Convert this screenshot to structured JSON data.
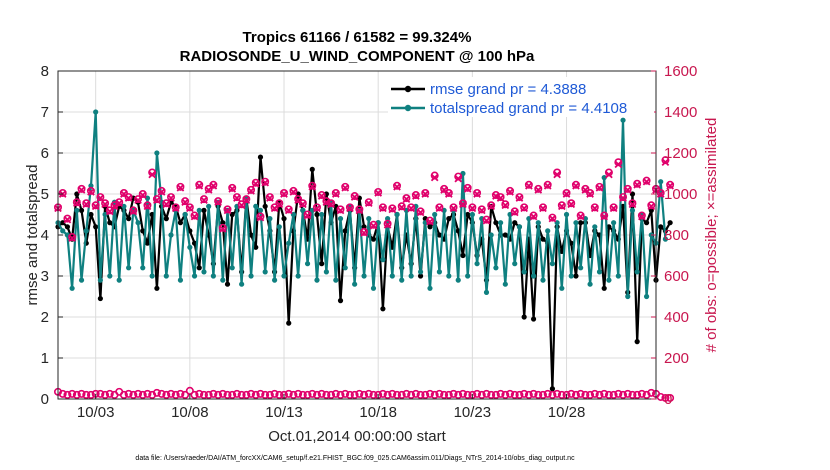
{
  "chart_data": {
    "type": "line",
    "title_line1": "Tropics 61166 / 61582 = 99.324%",
    "title_line2": "RADIOSONDE_U_WIND_COMPONENT @ 100 hPa",
    "xlabel": "Oct.01,2014 00:00:00 start",
    "ylabel_left": "rmse and totalspread",
    "ylabel_right": "# of obs: o=possible; ×=assimilated",
    "footer": "data file: /Users/raeder/DAI/ATM_forcXX/CAM6_setup/f.e21.FHIST_BGC.f09_025.CAM6assim.011/Diags_NTrS_2014-10/obs_diag_output.nc",
    "xlim": [
      1.0,
      32.75
    ],
    "ylim_left": [
      0,
      8
    ],
    "ylim_right": [
      0,
      1600
    ],
    "yticks_left": [
      "0",
      "1",
      "2",
      "3",
      "4",
      "5",
      "6",
      "7",
      "8"
    ],
    "yticks_right": [
      "0",
      "200",
      "400",
      "600",
      "800",
      "1000",
      "1200",
      "1400",
      "1600"
    ],
    "xticks": [
      {
        "day": 3,
        "label": "10/03"
      },
      {
        "day": 8,
        "label": "10/08"
      },
      {
        "day": 13,
        "label": "10/13"
      },
      {
        "day": 18,
        "label": "10/18"
      },
      {
        "day": 23,
        "label": "10/23"
      },
      {
        "day": 28,
        "label": "10/28"
      }
    ],
    "x_start_day": 1.0,
    "x_step_days": 0.25,
    "series": [
      {
        "name": "rmse grand pr = 4.3888",
        "color": "#000000",
        "axis": "left",
        "values": [
          4.2,
          4.3,
          4.2,
          3.9,
          5.0,
          4.6,
          3.8,
          4.5,
          4.2,
          2.45,
          4.7,
          4.3,
          4.2,
          4.7,
          4.6,
          4.4,
          4.9,
          4.8,
          4.1,
          3.8,
          4.5,
          2.7,
          4.7,
          4.4,
          4.8,
          4.7,
          4.3,
          4.5,
          4.1,
          3.8,
          3.2,
          4.6,
          4.0,
          3.3,
          4.7,
          4.3,
          2.8,
          4.5,
          4.6,
          3.1,
          4.9,
          4.0,
          3.7,
          5.9,
          4.7,
          4.1,
          3.1,
          4.8,
          4.4,
          1.85,
          4.1,
          5.0,
          4.6,
          3.9,
          5.6,
          4.5,
          3.3,
          5.0,
          4.3,
          4.7,
          2.4,
          4.1,
          4.6,
          3.2,
          4.9,
          4.2,
          4.0,
          3.9,
          4.3,
          2.2,
          4.2,
          3.7,
          4.5,
          3.2,
          4.0,
          3.3,
          4.4,
          3.0,
          4.4,
          4.2,
          4.3,
          4.0,
          3.9,
          4.4,
          4.5,
          4.1,
          3.5,
          4.5,
          4.3,
          3.5,
          3.9,
          2.9,
          4.7,
          4.3,
          4.0,
          4.0,
          3.9,
          4.3,
          4.2,
          2.0,
          3.9,
          1.95,
          4.2,
          3.9,
          3.8,
          0.25,
          4.2,
          3.6,
          4.1,
          3.8,
          3.0,
          4.3,
          4.3,
          3.5,
          4.1,
          4.0,
          2.7,
          4.2,
          4.1,
          3.9,
          4.7,
          2.6,
          5.0,
          1.4,
          4.4,
          4.3,
          4.6,
          2.9,
          4.2,
          4.1,
          4.3
        ]
      },
      {
        "name": "totalspread grand pr = 4.4108",
        "color": "#0f8080",
        "axis": "left",
        "values": [
          4.3,
          4.1,
          4.0,
          2.7,
          4.6,
          2.9,
          4.1,
          5.2,
          7.0,
          2.9,
          4.5,
          3.0,
          4.8,
          2.9,
          4.7,
          3.2,
          4.6,
          4.3,
          3.2,
          4.9,
          3.0,
          6.0,
          4.8,
          3.0,
          4.0,
          4.6,
          2.9,
          4.5,
          3.7,
          3.0,
          4.6,
          3.1,
          4.7,
          3.0,
          4.8,
          2.9,
          4.6,
          3.2,
          4.7,
          2.8,
          4.9,
          3.0,
          4.7,
          4.6,
          3.1,
          4.4,
          2.9,
          4.2,
          3.0,
          3.8,
          4.5,
          3.0,
          4.6,
          3.3,
          4.6,
          2.9,
          4.5,
          3.1,
          4.8,
          2.9,
          4.4,
          3.2,
          4.7,
          2.8,
          4.6,
          3.0,
          4.4,
          2.7,
          4.3,
          3.4,
          4.4,
          3.0,
          4.5,
          2.9,
          4.6,
          3.0,
          4.7,
          3.1,
          4.3,
          2.7,
          4.5,
          3.1,
          4.6,
          3.0,
          4.6,
          2.9,
          5.5,
          3.0,
          4.5,
          3.3,
          4.4,
          2.6,
          4.0,
          3.2,
          4.3,
          2.8,
          4.5,
          3.3,
          4.2,
          3.1,
          4.4,
          3.0,
          4.3,
          2.9,
          4.1,
          3.3,
          4.3,
          2.7,
          4.5,
          3.0,
          4.3,
          3.2,
          4.4,
          2.8,
          4.2,
          3.1,
          5.4,
          2.9,
          4.3,
          3.0,
          6.8,
          2.5,
          4.6,
          3.1,
          4.5,
          2.5,
          4.0,
          3.8,
          5.3,
          3.9
        ]
      },
      {
        "name": "possible",
        "color": "#e0006b",
        "axis": "right",
        "marker": "circle",
        "values": [
          935,
          1005,
          880,
          790,
          960,
          1025,
          955,
          1015,
          945,
          985,
          955,
          920,
          945,
          960,
          1005,
          985,
          920,
          975,
          1000,
          945,
          1105,
          975,
          1015,
          955,
          985,
          935,
          1035,
          965,
          935,
          895,
          1045,
          975,
          1025,
          1045,
          965,
          835,
          925,
          1030,
          985,
          950,
          975,
          1020,
          1055,
          890,
          1060,
          985,
          935,
          955,
          1005,
          925,
          1015,
          975,
          955,
          900,
          1040,
          935,
          995,
          965,
          955,
          1005,
          925,
          1035,
          935,
          990,
          925,
          815,
          960,
          850,
          1010,
          935,
          855,
          930,
          1040,
          940,
          980,
          935,
          995,
          915,
          1005,
          870,
          1090,
          935,
          1025,
          1005,
          935,
          1085,
          955,
          1030,
          935,
          1005,
          925,
          875,
          945,
          995,
          985,
          950,
          1015,
          915,
          985,
          935,
          1045,
          895,
          1025,
          935,
          1045,
          885,
          1105,
          945,
          1005,
          955,
          1045,
          895,
          1025,
          1005,
          935,
          1035,
          895,
          1105,
          935,
          1155,
          985,
          1025,
          955,
          1050,
          895,
          1065,
          945,
          1025,
          1005,
          1165,
          1045
        ]
      },
      {
        "name": "assimilated",
        "color": "#e0006b",
        "axis": "right",
        "marker": "x",
        "values": [
          930,
          1000,
          875,
          785,
          955,
          1020,
          950,
          1010,
          940,
          980,
          950,
          915,
          940,
          955,
          1000,
          980,
          915,
          970,
          995,
          940,
          1095,
          970,
          1010,
          950,
          980,
          930,
          1030,
          960,
          930,
          890,
          1040,
          970,
          1020,
          1040,
          960,
          830,
          920,
          1025,
          980,
          945,
          970,
          1015,
          1050,
          885,
          1055,
          980,
          930,
          950,
          1000,
          920,
          1010,
          970,
          950,
          895,
          1035,
          930,
          990,
          960,
          950,
          1000,
          920,
          1030,
          930,
          985,
          920,
          810,
          955,
          845,
          1005,
          930,
          850,
          925,
          1035,
          935,
          975,
          930,
          990,
          910,
          1000,
          865,
          1080,
          930,
          1020,
          1000,
          930,
          1075,
          950,
          1025,
          930,
          1000,
          920,
          870,
          940,
          990,
          980,
          945,
          1010,
          910,
          980,
          930,
          1040,
          890,
          1020,
          930,
          1040,
          880,
          1095,
          940,
          1000,
          950,
          1040,
          890,
          1020,
          1000,
          930,
          1030,
          890,
          1095,
          930,
          1145,
          980,
          1020,
          950,
          1045,
          890,
          1060,
          940,
          1020,
          1000,
          1155,
          1040
        ]
      },
      {
        "name": "possible_low",
        "color": "#e0006b",
        "axis": "right",
        "marker": "circle",
        "values": [
          35,
          25,
          20,
          25,
          20,
          25,
          20,
          20,
          25,
          25,
          20,
          25,
          20,
          35,
          20,
          25,
          20,
          25,
          20,
          25,
          20,
          30,
          25,
          20,
          25,
          20,
          25,
          20,
          40,
          20,
          25,
          20,
          20,
          25,
          20,
          25,
          20,
          20,
          25,
          20,
          20,
          25,
          20,
          25,
          20,
          20,
          25,
          20,
          20,
          25,
          20,
          25,
          20,
          20,
          25,
          20,
          25,
          20,
          20,
          25,
          20,
          25,
          20,
          20,
          25,
          20,
          25,
          20,
          20,
          25,
          20,
          25,
          20,
          20,
          25,
          20,
          25,
          20,
          20,
          25,
          20,
          25,
          20,
          20,
          25,
          20,
          25,
          20,
          20,
          25,
          20,
          25,
          20,
          20,
          25,
          20,
          25,
          20,
          20,
          25,
          20,
          25,
          20,
          20,
          25,
          20,
          25,
          20,
          20,
          25,
          20,
          25,
          20,
          20,
          25,
          20,
          25,
          20,
          20,
          25,
          20,
          25,
          20,
          20,
          25,
          20,
          30,
          25,
          10,
          5,
          5
        ]
      }
    ],
    "legend": [
      {
        "label": "rmse grand pr = 4.3888",
        "color": "#000000"
      },
      {
        "label": "totalspread grand pr = 4.4108",
        "color": "#0f8080"
      }
    ]
  }
}
